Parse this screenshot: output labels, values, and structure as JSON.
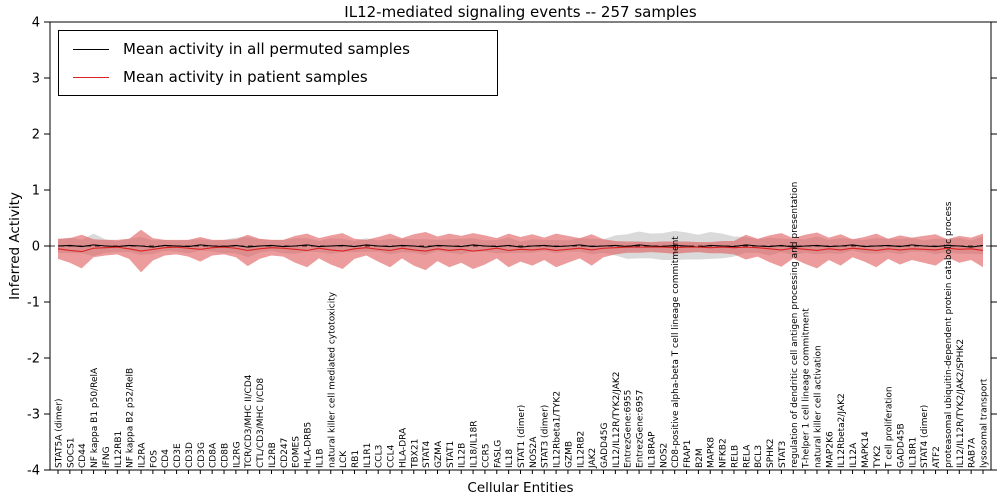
{
  "figure": {
    "title": "IL12-mediated signaling events -- 257 samples",
    "xlabel": "Cellular Entities",
    "ylabel": "Inferred Activity"
  },
  "chart_data": {
    "type": "area",
    "title": "IL12-mediated signaling events -- 257 samples",
    "xlabel": "Cellular Entities",
    "ylabel": "Inferred Activity",
    "ylim": [
      -4,
      4
    ],
    "yticks": [
      -4,
      -3,
      -2,
      -1,
      0,
      1,
      2,
      3,
      4
    ],
    "grid": false,
    "legend_position": "upper left",
    "legend": [
      {
        "label": "Mean activity in all permuted samples",
        "color": "#000000"
      },
      {
        "label": "Mean activity in patient samples",
        "color": "#dd2222"
      }
    ],
    "categories": [
      "STAT5A (dimer)",
      "SOCS1",
      "CD44",
      "NF kappa B1 p50/RelA",
      "IFNG",
      "IL12RB1",
      "NF kappa B2 p52/RelB",
      "IL2RA",
      "FOS",
      "CD4",
      "CD3E",
      "CD3D",
      "CD3G",
      "CD8A",
      "CD8B",
      "IL2RG",
      "TCR/CD3/MHC II/CD4",
      "CTL/CD3/MHC I/CD8",
      "IL2RB",
      "CD247",
      "EOMES",
      "HLA-DRB5",
      "IL1B",
      "natural killer cell mediated cytotoxicity",
      "LCK",
      "RB1",
      "IL1R1",
      "CCL3",
      "CCL4",
      "HLA-DRA",
      "TBX21",
      "STAT4",
      "GZMA",
      "STAT1",
      "IL12B",
      "IL18/IL18R",
      "CCR5",
      "FASLG",
      "IL18",
      "STAT1 (dimer)",
      "NOS2A",
      "STAT3 (dimer)",
      "IL12Rbeta1/TYK2",
      "GZMB",
      "IL12RB2",
      "JAK2",
      "GADD45G",
      "IL12/IL12R/TYK2/JAK2",
      "EntrezGene:6955",
      "EntrezGene:6957",
      "IL18RAP",
      "NOS2",
      "CD8-positive alpha-beta T cell lineage commitment",
      "FRAP1",
      "B2M",
      "MAPK8",
      "NFKB2",
      "RELB",
      "RELA",
      "BCL3",
      "SPHK2",
      "STAT3",
      "regulation of dendritic cell antigen processing and presentation",
      "T-helper 1 cell lineage commitment",
      "natural killer cell activation",
      "MAP2K6",
      "IL12Rbeta2/JAK2",
      "IL12A",
      "MAPK14",
      "TYK2",
      "T cell proliferation",
      "GADD45B",
      "IL18R1",
      "STAT4 (dimer)",
      "ATF2",
      "proteasomal ubiquitin-dependent protein catabolic process",
      "IL12/IL12R/TYK2/JAK2/SPHK2",
      "RAB7A",
      "lysosomal transport"
    ],
    "series": [
      {
        "name": "Mean activity in all permuted samples",
        "color": "#000000",
        "band_color": "#d4d4d4",
        "band_opacity": 0.85,
        "values": [
          0,
          0.01,
          -0.01,
          0.02,
          0,
          -0.01,
          0.01,
          0,
          -0.02,
          0.01,
          0,
          -0.01,
          0.02,
          0,
          -0.01,
          0.01,
          -0.02,
          0,
          0.01,
          -0.01,
          0,
          0.02,
          -0.01,
          0,
          0.01,
          -0.01,
          0.02,
          0,
          -0.01,
          0.01,
          0,
          -0.02,
          0.01,
          0,
          -0.01,
          0.02,
          0,
          -0.01,
          0.01,
          -0.02,
          0,
          0.01,
          -0.01,
          0,
          0.02,
          -0.01,
          0,
          0.01,
          -0.01,
          0.02,
          0,
          -0.01,
          0.01,
          0,
          -0.02,
          0.01,
          0,
          -0.01,
          0.02,
          0,
          -0.01,
          0.01,
          -0.02,
          0,
          0.01,
          -0.01,
          0,
          0.02,
          -0.01,
          0,
          0.01,
          -0.01,
          0.02,
          0,
          -0.01,
          0.01,
          0,
          -0.02,
          0.01
        ],
        "band_half_width": [
          0.12,
          0.14,
          0.12,
          0.2,
          0.12,
          0.1,
          0.12,
          0.16,
          0.12,
          0.1,
          0.1,
          0.12,
          0.1,
          0.1,
          0.12,
          0.14,
          0.18,
          0.12,
          0.1,
          0.12,
          0.14,
          0.12,
          0.1,
          0.14,
          0.12,
          0.1,
          0.12,
          0.1,
          0.14,
          0.12,
          0.12,
          0.14,
          0.1,
          0.12,
          0.14,
          0.12,
          0.1,
          0.12,
          0.14,
          0.1,
          0.12,
          0.1,
          0.12,
          0.1,
          0.12,
          0.14,
          0.12,
          0.18,
          0.22,
          0.24,
          0.22,
          0.24,
          0.26,
          0.24,
          0.22,
          0.24,
          0.22,
          0.18,
          0.14,
          0.12,
          0.16,
          0.12,
          0.14,
          0.12,
          0.16,
          0.12,
          0.14,
          0.1,
          0.12,
          0.14,
          0.12,
          0.14,
          0.12,
          0.1,
          0.14,
          0.12,
          0.14,
          0.12,
          0.16
        ]
      },
      {
        "name": "Mean activity in patient samples",
        "color": "#dd2222",
        "band_color": "#e05a5a",
        "band_opacity": 0.6,
        "values": [
          -0.05,
          -0.08,
          -0.1,
          -0.04,
          -0.03,
          -0.02,
          -0.05,
          -0.09,
          -0.06,
          -0.03,
          -0.02,
          -0.04,
          -0.06,
          -0.03,
          -0.02,
          -0.04,
          -0.08,
          -0.05,
          -0.03,
          -0.04,
          -0.06,
          -0.08,
          -0.04,
          -0.07,
          -0.09,
          -0.05,
          -0.03,
          -0.06,
          -0.08,
          -0.04,
          -0.07,
          -0.09,
          -0.05,
          -0.08,
          -0.06,
          -0.09,
          -0.07,
          -0.04,
          -0.08,
          -0.06,
          -0.07,
          -0.05,
          -0.08,
          -0.06,
          -0.04,
          -0.07,
          -0.04,
          -0.03,
          -0.02,
          -0.02,
          -0.02,
          -0.02,
          -0.03,
          -0.02,
          -0.02,
          -0.03,
          -0.02,
          -0.03,
          -0.02,
          -0.03,
          -0.05,
          -0.07,
          -0.04,
          -0.06,
          -0.08,
          -0.05,
          -0.07,
          -0.04,
          -0.06,
          -0.08,
          -0.05,
          -0.07,
          -0.05,
          -0.06,
          -0.07,
          -0.04,
          -0.06,
          -0.05,
          -0.08
        ],
        "band_half_width": [
          0.18,
          0.22,
          0.3,
          0.16,
          0.14,
          0.13,
          0.18,
          0.38,
          0.2,
          0.14,
          0.13,
          0.15,
          0.22,
          0.14,
          0.13,
          0.16,
          0.28,
          0.18,
          0.14,
          0.15,
          0.24,
          0.3,
          0.18,
          0.26,
          0.32,
          0.18,
          0.14,
          0.22,
          0.3,
          0.18,
          0.28,
          0.34,
          0.22,
          0.3,
          0.24,
          0.32,
          0.26,
          0.18,
          0.3,
          0.22,
          0.28,
          0.2,
          0.3,
          0.24,
          0.18,
          0.28,
          0.16,
          0.12,
          0.1,
          0.1,
          0.09,
          0.1,
          0.11,
          0.1,
          0.09,
          0.1,
          0.11,
          0.12,
          0.22,
          0.16,
          0.24,
          0.3,
          0.18,
          0.26,
          0.32,
          0.2,
          0.28,
          0.16,
          0.22,
          0.3,
          0.18,
          0.26,
          0.2,
          0.24,
          0.28,
          0.16,
          0.24,
          0.2,
          0.3
        ]
      }
    ]
  }
}
